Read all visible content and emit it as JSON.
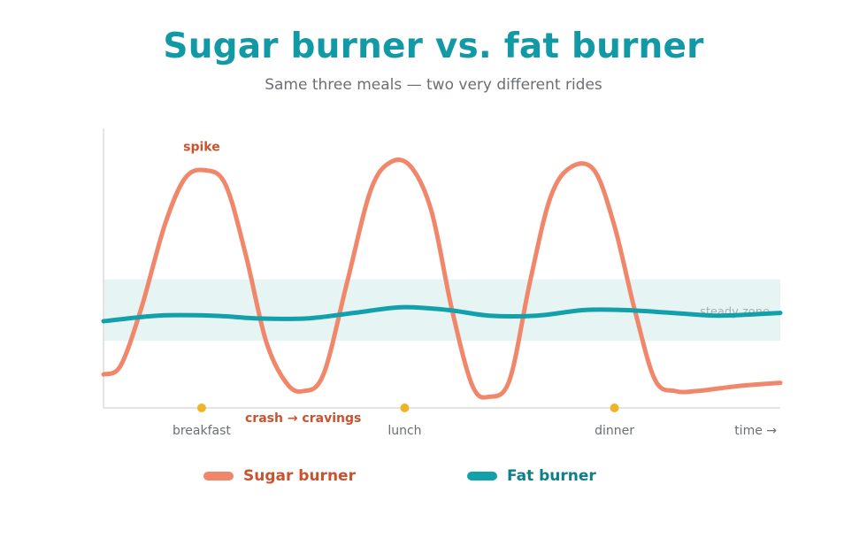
{
  "header": {
    "title": "Sugar burner vs. fat burner",
    "subtitle": "Same three meals — two very different rides"
  },
  "colors": {
    "title": "#1199a6",
    "sugar": "#f0876a",
    "fat": "#12a0aa",
    "annotation": "#c8532f",
    "meal_dot": "#f0b429",
    "zone": "#e6f4f3",
    "axis": "#d9dcdd",
    "muted": "#6b6f72",
    "zone_label": "#a7b1b3"
  },
  "chart_data": {
    "type": "line",
    "xlabel": "time →",
    "x_range": [
      0,
      10
    ],
    "y_range": [
      0,
      100
    ],
    "band": {
      "label": "steady zone",
      "from": 24,
      "to": 46
    },
    "meals": [
      {
        "label": "breakfast",
        "x": 1.45
      },
      {
        "label": "lunch",
        "x": 4.45
      },
      {
        "label": "dinner",
        "x": 7.55
      }
    ],
    "annotations": [
      {
        "text": "spike",
        "x": 1.45,
        "y": 92
      },
      {
        "text": "crash → cravings",
        "x": 2.95,
        "y": -5
      }
    ],
    "series": [
      {
        "name": "Sugar burner",
        "x": [
          0,
          0.25,
          0.55,
          0.9,
          1.2,
          1.5,
          1.8,
          2.1,
          2.4,
          2.7,
          2.95,
          3.25,
          3.6,
          3.95,
          4.25,
          4.55,
          4.85,
          5.15,
          5.45,
          5.7,
          6.0,
          6.3,
          6.6,
          6.9,
          7.25,
          7.55,
          7.85,
          8.15,
          8.45,
          8.75,
          9.1,
          9.45,
          10
        ],
        "values": [
          12,
          15,
          35,
          65,
          82,
          85,
          80,
          55,
          24,
          9,
          6,
          12,
          45,
          78,
          88,
          86,
          70,
          35,
          8,
          4,
          10,
          45,
          75,
          86,
          85,
          65,
          35,
          10,
          6,
          6,
          7,
          8,
          9
        ]
      },
      {
        "name": "Fat burner",
        "x": [
          0,
          0.8,
          1.6,
          2.3,
          3.0,
          3.7,
          4.4,
          5.1,
          5.7,
          6.4,
          7.1,
          7.7,
          8.4,
          9.1,
          10
        ],
        "values": [
          31,
          33,
          33,
          32,
          32,
          34,
          36,
          35,
          33,
          33,
          35,
          35,
          34,
          33,
          34
        ]
      }
    ]
  }
}
